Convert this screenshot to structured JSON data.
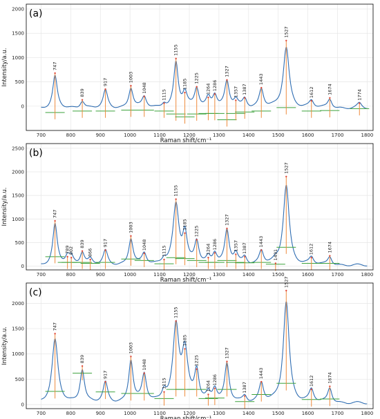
{
  "chart_data": [
    {
      "type": "line",
      "panel_label": "(a)",
      "xlabel": "Raman shift/cm⁻¹",
      "ylabel": "Intensity/a.u.",
      "xlim": [
        650,
        1820
      ],
      "ylim": [
        -500,
        2100
      ],
      "xticks": [
        700,
        800,
        900,
        1000,
        1100,
        1200,
        1300,
        1400,
        1500,
        1600,
        1700,
        1800
      ],
      "yticks": [
        0,
        500,
        1000,
        1500,
        2000
      ],
      "grid": true,
      "colors": {
        "spectrum": "#2f6db2",
        "baseline": "#3aa13a",
        "peak_line": "#ee8a3c",
        "peak_marker": "#e04a3a"
      },
      "baseline_level": -50,
      "peaks": [
        {
          "label": "747",
          "x": 747,
          "y": 680,
          "base": -130
        },
        {
          "label": "839",
          "x": 839,
          "y": 130,
          "base": -100
        },
        {
          "label": "917",
          "x": 917,
          "y": 350,
          "base": -100
        },
        {
          "label": "1003",
          "x": 1003,
          "y": 420,
          "base": -80
        },
        {
          "label": "1048",
          "x": 1048,
          "y": 200,
          "base": -80
        },
        {
          "label": "1115",
          "x": 1115,
          "y": 60,
          "base": -100
        },
        {
          "label": "1155",
          "x": 1155,
          "y": 980,
          "base": -160
        },
        {
          "label": "1185",
          "x": 1185,
          "y": 280,
          "base": -220
        },
        {
          "label": "1225",
          "x": 1225,
          "y": 400,
          "base": -160
        },
        {
          "label": "1264",
          "x": 1264,
          "y": 180,
          "base": -150
        },
        {
          "label": "1286",
          "x": 1286,
          "y": 250,
          "base": -150
        },
        {
          "label": "1327",
          "x": 1327,
          "y": 540,
          "base": -280
        },
        {
          "label": "1357",
          "x": 1357,
          "y": 120,
          "base": -150
        },
        {
          "label": "1387",
          "x": 1387,
          "y": 170,
          "base": -120
        },
        {
          "label": "1443",
          "x": 1443,
          "y": 380,
          "base": -100
        },
        {
          "label": "1527",
          "x": 1527,
          "y": 1350,
          "base": -30
        },
        {
          "label": "1612",
          "x": 1612,
          "y": 110,
          "base": -100
        },
        {
          "label": "1674",
          "x": 1674,
          "y": 170,
          "base": -90
        },
        {
          "label": "1774",
          "x": 1774,
          "y": 60,
          "base": -50
        }
      ]
    },
    {
      "type": "line",
      "panel_label": "(b)",
      "xlabel": "Raman shift/cm⁻¹",
      "ylabel": "Intensity/a.u.",
      "xlim": [
        650,
        1820
      ],
      "ylim": [
        -80,
        2600
      ],
      "xticks": [
        700,
        800,
        900,
        1000,
        1100,
        1200,
        1300,
        1400,
        1500,
        1600,
        1700,
        1800
      ],
      "yticks": [
        0,
        500,
        1000,
        1500,
        2000,
        2500
      ],
      "grid": true,
      "colors": {
        "spectrum": "#2f6db2",
        "baseline": "#3aa13a",
        "peak_line": "#ee8a3c",
        "peak_marker": "#e04a3a"
      },
      "baseline_level": 10,
      "peaks": [
        {
          "label": "747",
          "x": 747,
          "y": 960,
          "base": 200
        },
        {
          "label": "789",
          "x": 789,
          "y": 200,
          "base": 80
        },
        {
          "label": "802",
          "x": 802,
          "y": 180,
          "base": 80
        },
        {
          "label": "839",
          "x": 839,
          "y": 320,
          "base": 80
        },
        {
          "label": "866",
          "x": 866,
          "y": 140,
          "base": 60
        },
        {
          "label": "917",
          "x": 917,
          "y": 340,
          "base": 80
        },
        {
          "label": "1003",
          "x": 1003,
          "y": 640,
          "base": 150
        },
        {
          "label": "1048",
          "x": 1048,
          "y": 270,
          "base": 120
        },
        {
          "label": "1115",
          "x": 1115,
          "y": 140,
          "base": 50
        },
        {
          "label": "1155",
          "x": 1155,
          "y": 1420,
          "base": 180
        },
        {
          "label": "1185",
          "x": 1185,
          "y": 700,
          "base": 160
        },
        {
          "label": "1225",
          "x": 1225,
          "y": 560,
          "base": 120
        },
        {
          "label": "1264",
          "x": 1264,
          "y": 180,
          "base": 80
        },
        {
          "label": "1286",
          "x": 1286,
          "y": 280,
          "base": 80
        },
        {
          "label": "1327",
          "x": 1327,
          "y": 800,
          "base": 120
        },
        {
          "label": "1357",
          "x": 1357,
          "y": 250,
          "base": 80
        },
        {
          "label": "1387",
          "x": 1387,
          "y": 200,
          "base": 70
        },
        {
          "label": "1443",
          "x": 1443,
          "y": 340,
          "base": 80
        },
        {
          "label": "1491",
          "x": 1491,
          "y": 60,
          "base": 40
        },
        {
          "label": "1527",
          "x": 1527,
          "y": 1900,
          "base": 400
        },
        {
          "label": "1612",
          "x": 1612,
          "y": 180,
          "base": 60
        },
        {
          "label": "1674",
          "x": 1674,
          "y": 220,
          "base": 60
        }
      ]
    },
    {
      "type": "line",
      "panel_label": "(c)",
      "xlabel": "Raman shift/cm⁻¹",
      "ylabel": "Intensity/a.u.",
      "xlim": [
        650,
        1820
      ],
      "ylim": [
        -80,
        2400
      ],
      "xticks": [
        700,
        800,
        900,
        1000,
        1100,
        1200,
        1300,
        1400,
        1500,
        1600,
        1700,
        1800
      ],
      "yticks": [
        0,
        500,
        1000,
        1500,
        2000
      ],
      "grid": true,
      "colors": {
        "spectrum": "#2f6db2",
        "baseline": "#3aa13a",
        "peak_line": "#ee8a3c",
        "peak_marker": "#e04a3a"
      },
      "baseline_level": 20,
      "peaks": [
        {
          "label": "747",
          "x": 747,
          "y": 1400,
          "base": 260
        },
        {
          "label": "839",
          "x": 839,
          "y": 760,
          "base": 620
        },
        {
          "label": "917",
          "x": 917,
          "y": 450,
          "base": 250
        },
        {
          "label": "1003",
          "x": 1003,
          "y": 950,
          "base": 220
        },
        {
          "label": "1048",
          "x": 1048,
          "y": 620,
          "base": 220
        },
        {
          "label": "1115",
          "x": 1115,
          "y": 250,
          "base": 120
        },
        {
          "label": "1155",
          "x": 1155,
          "y": 1650,
          "base": 300
        },
        {
          "label": "1185",
          "x": 1185,
          "y": 1100,
          "base": 300
        },
        {
          "label": "1225",
          "x": 1225,
          "y": 700,
          "base": 300
        },
        {
          "label": "1264",
          "x": 1264,
          "y": 200,
          "base": 120
        },
        {
          "label": "1286",
          "x": 1286,
          "y": 320,
          "base": 130
        },
        {
          "label": "1327",
          "x": 1327,
          "y": 850,
          "base": 300
        },
        {
          "label": "1387",
          "x": 1387,
          "y": 170,
          "base": 60
        },
        {
          "label": "1443",
          "x": 1443,
          "y": 450,
          "base": 200
        },
        {
          "label": "1527",
          "x": 1527,
          "y": 2250,
          "base": 420
        },
        {
          "label": "1612",
          "x": 1612,
          "y": 300,
          "base": 100
        },
        {
          "label": "1674",
          "x": 1674,
          "y": 360,
          "base": 110
        }
      ]
    }
  ]
}
